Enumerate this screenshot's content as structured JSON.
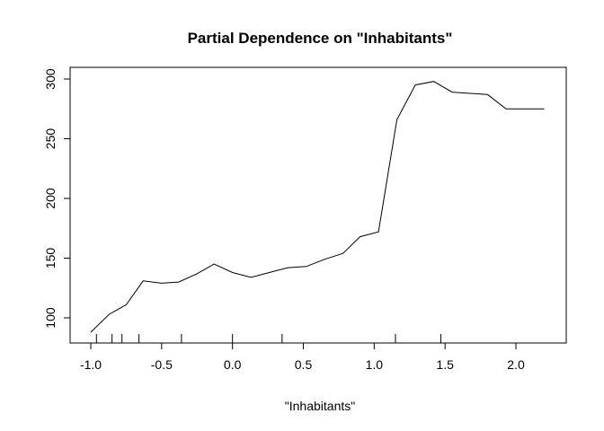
{
  "chart_data": {
    "type": "line",
    "title": "Partial Dependence on \"Inhabitants\"",
    "xlabel": "\"Inhabitants\"",
    "ylabel": "",
    "xlim": [
      -1.0,
      2.2
    ],
    "ylim": [
      88,
      298
    ],
    "x_ticks": [
      -1.0,
      -0.5,
      0.0,
      0.5,
      1.0,
      1.5,
      2.0
    ],
    "x_tick_labels": [
      "-1.0",
      "-0.5",
      "0.0",
      "0.5",
      "1.0",
      "1.5",
      "2.0"
    ],
    "y_ticks": [
      100,
      150,
      200,
      250,
      300
    ],
    "y_tick_labels": [
      "100",
      "150",
      "200",
      "250",
      "300"
    ],
    "grid": false,
    "legend": "none",
    "series": [
      {
        "x": [
          -1.0,
          -0.87,
          -0.75,
          -0.63,
          -0.5,
          -0.38,
          -0.25,
          -0.13,
          0.0,
          0.13,
          0.26,
          0.39,
          0.52,
          0.65,
          0.78,
          0.9,
          1.03,
          1.16,
          1.29,
          1.42,
          1.55,
          1.68,
          1.8,
          1.93,
          2.06,
          2.2
        ],
        "values": [
          88,
          103,
          111,
          131,
          129,
          130,
          137,
          145,
          138,
          134,
          138,
          142,
          143,
          149,
          154,
          168,
          172,
          266,
          295,
          298,
          289,
          288,
          287,
          275,
          275,
          275
        ],
        "color": "#000000"
      }
    ],
    "rug_x": [
      -0.96,
      -0.85,
      -0.78,
      -0.66,
      -0.36,
      0.0,
      0.35,
      1.15,
      1.47
    ]
  }
}
